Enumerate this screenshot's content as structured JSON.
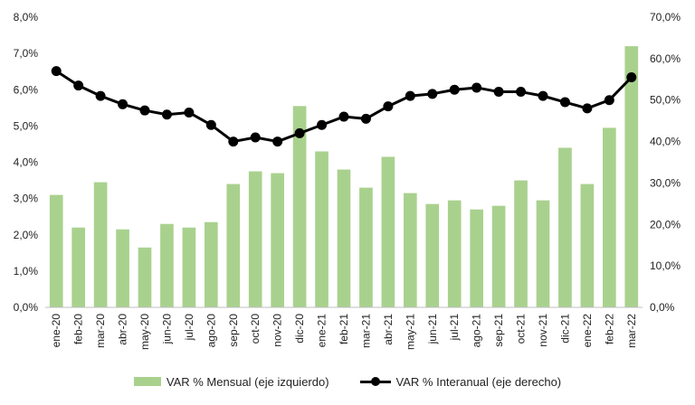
{
  "chart_data": {
    "type": "bar",
    "categories": [
      "ene-20",
      "feb-20",
      "mar-20",
      "abr-20",
      "may-20",
      "jun-20",
      "jul-20",
      "ago-20",
      "sep-20",
      "oct-20",
      "nov-20",
      "dic-20",
      "ene-21",
      "feb-21",
      "mar-21",
      "abr-21",
      "may-21",
      "jun-21",
      "jul-21",
      "ago-21",
      "sep-21",
      "oct-21",
      "nov-21",
      "dic-21",
      "ene-22",
      "feb-22",
      "mar-22"
    ],
    "series": [
      {
        "name": "VAR % Mensual (eje izquierdo)",
        "type": "bar",
        "axis": "left",
        "color": "#a9d18e",
        "values": [
          3.1,
          2.2,
          3.45,
          2.15,
          1.65,
          2.3,
          2.2,
          2.35,
          3.4,
          3.75,
          3.7,
          5.55,
          4.3,
          3.8,
          3.3,
          4.15,
          3.15,
          2.85,
          2.95,
          2.7,
          2.8,
          3.5,
          2.95,
          4.4,
          3.4,
          4.95,
          7.2
        ]
      },
      {
        "name": "VAR % Interanual (eje derecho)",
        "type": "line",
        "axis": "right",
        "color": "#000000",
        "values": [
          57.0,
          53.5,
          51.0,
          49.0,
          47.5,
          46.5,
          47.0,
          44.0,
          40.0,
          41.0,
          40.0,
          42.0,
          44.0,
          46.0,
          45.5,
          48.5,
          51.0,
          51.5,
          52.5,
          53.0,
          52.0,
          52.0,
          51.0,
          49.5,
          48.0,
          50.0,
          55.5
        ]
      }
    ],
    "y_left": {
      "ticks": [
        "0,0%",
        "1,0%",
        "2,0%",
        "3,0%",
        "4,0%",
        "5,0%",
        "6,0%",
        "7,0%",
        "8,0%"
      ],
      "ylim": [
        0,
        8
      ]
    },
    "y_right": {
      "ticks": [
        "0,0%",
        "10,0%",
        "20,0%",
        "30,0%",
        "40,0%",
        "50,0%",
        "60,0%",
        "70,0%"
      ],
      "ylim": [
        0,
        70
      ]
    },
    "grid": false,
    "legend": "bottom"
  }
}
